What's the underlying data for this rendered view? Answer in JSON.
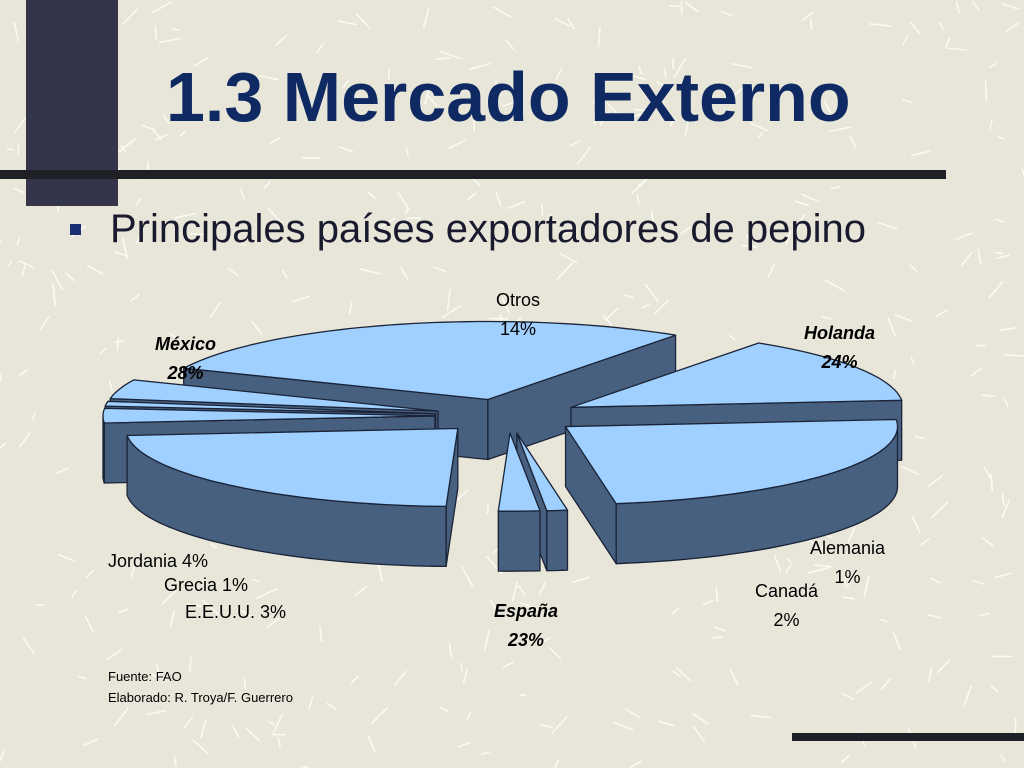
{
  "slide": {
    "title": "1.3 Mercado Externo",
    "bullet": "Principales países exportadores de pepino"
  },
  "colors": {
    "title": "#0f2a63",
    "slice_top": "#9fd0ff",
    "slice_side": "#48607f",
    "outline": "#1a2337"
  },
  "chart_data": {
    "type": "pie",
    "style": "3d-exploded",
    "categories": [
      "Otros",
      "Holanda",
      "Alemania",
      "Canadá",
      "España",
      "E.E.U.U.",
      "Grecia",
      "Jordania",
      "México"
    ],
    "values": [
      14,
      24,
      1,
      2,
      23,
      3,
      1,
      4,
      28
    ],
    "labels": [
      {
        "name": "Otros",
        "pct": "14%",
        "emphasis": false
      },
      {
        "name": "Holanda",
        "pct": "24%",
        "emphasis": true
      },
      {
        "name": "Alemania",
        "pct": "1%",
        "emphasis": false
      },
      {
        "name": "Canadá",
        "pct": "2%",
        "emphasis": false
      },
      {
        "name": "España",
        "pct": "23%",
        "emphasis": true
      },
      {
        "name": "E.E.U.U. 3%",
        "emphasis": false
      },
      {
        "name": "Grecia 1%",
        "emphasis": false
      },
      {
        "name": "Jordania 4%",
        "emphasis": false
      },
      {
        "name": "México",
        "pct": "28%",
        "emphasis": true
      }
    ]
  },
  "source": {
    "fuente": "Fuente: FAO",
    "elaborado": "Elaborado: R. Troya/F. Guerrero"
  }
}
